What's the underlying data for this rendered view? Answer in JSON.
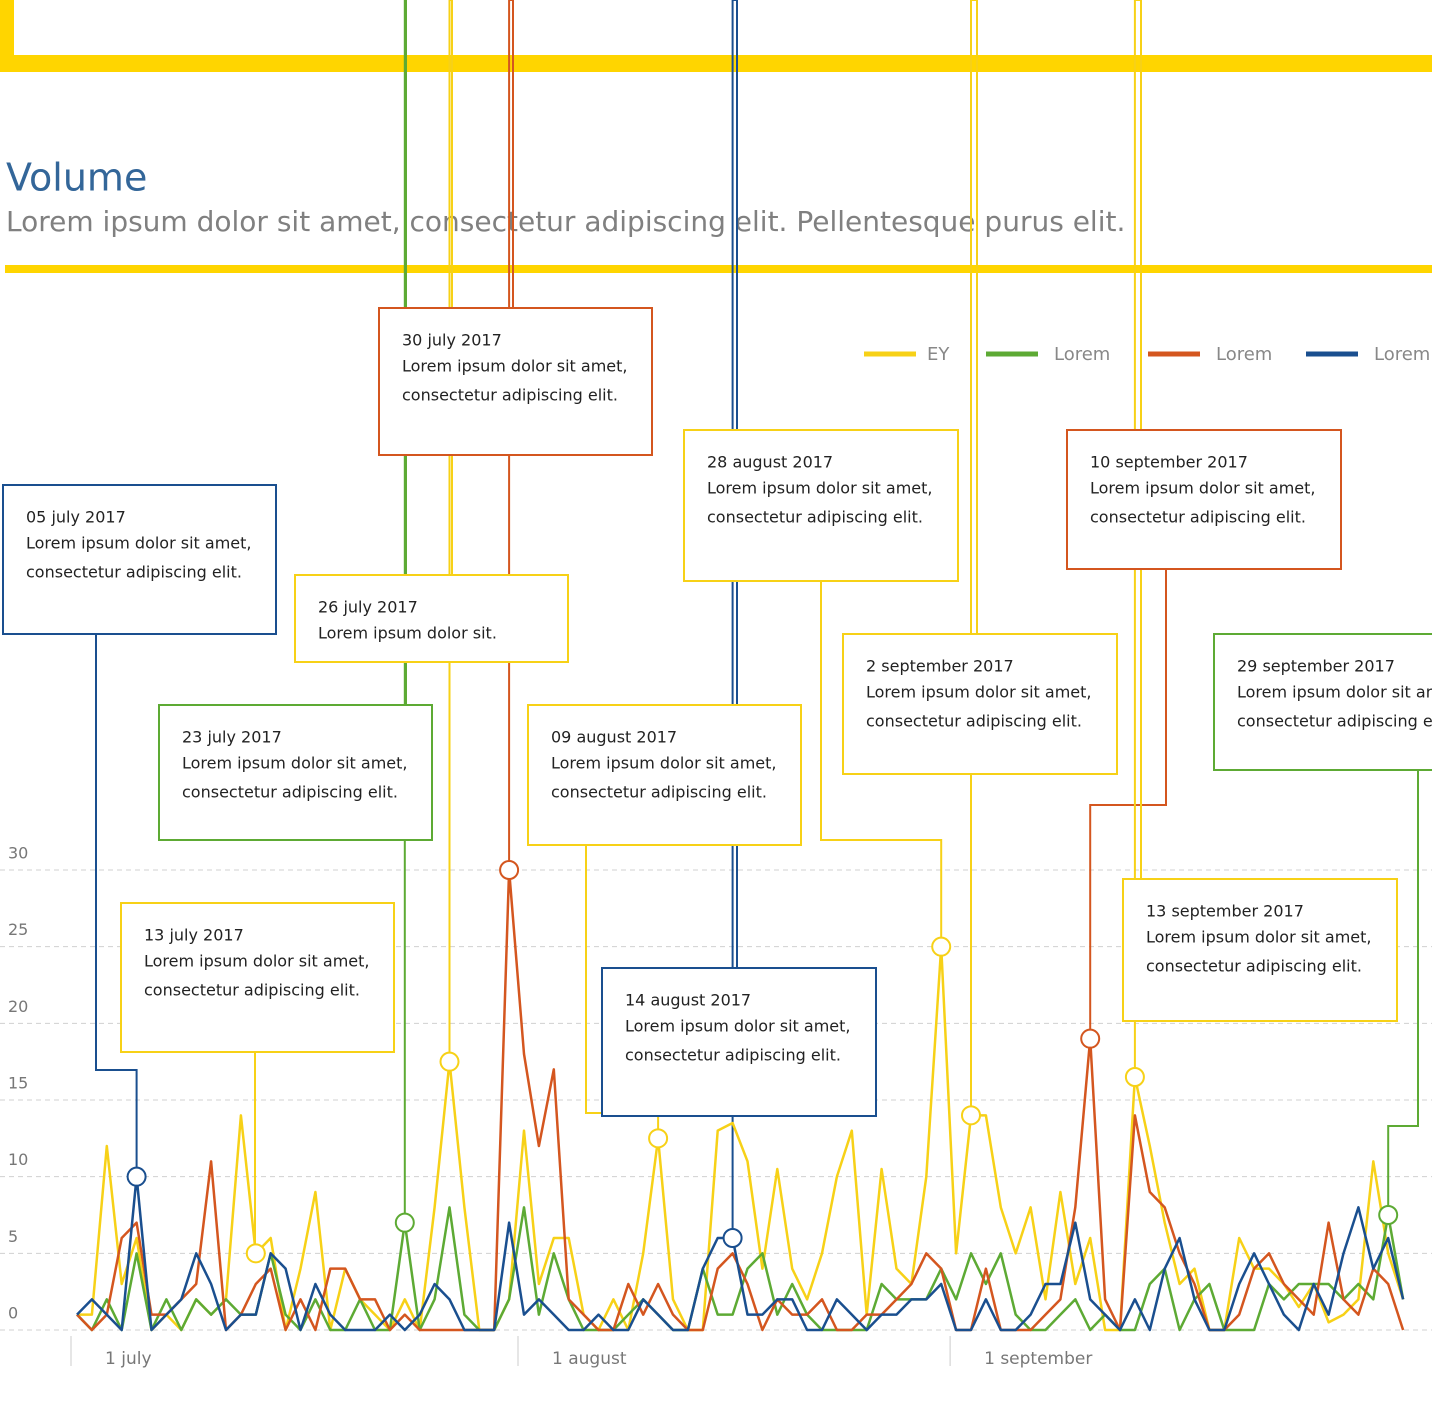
{
  "chart_data": {
    "type": "line",
    "title": "Volume",
    "subtitle": "Lorem ipsum dolor sit amet, consectetur adipiscing elit. Pellentesque purus elit.",
    "categories": [
      "1 july",
      null,
      null,
      null,
      null,
      null,
      null,
      null,
      null,
      null,
      null,
      null,
      null,
      null,
      null,
      null,
      null,
      null,
      null,
      null,
      null,
      null,
      null,
      null,
      null,
      null,
      null,
      null,
      null,
      null,
      "1 august",
      null,
      null,
      null,
      null,
      null,
      null,
      null,
      null,
      null,
      null,
      null,
      null,
      null,
      null,
      null,
      null,
      null,
      null,
      null,
      null,
      null,
      null,
      null,
      null,
      null,
      null,
      null,
      null,
      "1 september",
      null,
      null,
      null,
      null,
      null,
      null,
      null,
      null,
      null,
      null,
      null,
      null,
      null,
      null,
      null,
      null,
      null,
      null,
      null,
      null,
      null,
      null,
      null,
      null,
      null,
      null,
      null,
      null,
      null,
      null
    ],
    "series": [
      {
        "name": "EY",
        "color": "#f7d117",
        "values": [
          1,
          1,
          12,
          3,
          6,
          0,
          1,
          0,
          2,
          1,
          2,
          14,
          5,
          6,
          0,
          4,
          9,
          0,
          4,
          2,
          1,
          0,
          2,
          0,
          8,
          17.5,
          8,
          0,
          0,
          2,
          13,
          3,
          6,
          6,
          1,
          0,
          2,
          0,
          5,
          12.5,
          2,
          0,
          0,
          13,
          13.5,
          11,
          4,
          10.5,
          4,
          2,
          5,
          10,
          13,
          1,
          10.5,
          4,
          3,
          10,
          25,
          5,
          14,
          14,
          8,
          5,
          8,
          2,
          9,
          3,
          6,
          0,
          0,
          16.5,
          12,
          7,
          3,
          4,
          0,
          0,
          6,
          4,
          4,
          3,
          1.5,
          3,
          0.5,
          1,
          2,
          11,
          5,
          2
        ]
      },
      {
        "name": "Lorem",
        "color": "#5daa34",
        "values": [
          1,
          0,
          2,
          0,
          5,
          0,
          2,
          0,
          2,
          1,
          2,
          1,
          1,
          5,
          1,
          0,
          2,
          0,
          0,
          2,
          0,
          0,
          7,
          0,
          2,
          8,
          1,
          0,
          0,
          2,
          8,
          1,
          5,
          2,
          0,
          0,
          0,
          1,
          2,
          1,
          0,
          0,
          4,
          1,
          1,
          4,
          5,
          1,
          3,
          1,
          0,
          0,
          0,
          0,
          3,
          2,
          2,
          2,
          4,
          2,
          5,
          3,
          5,
          1,
          0,
          0,
          1,
          2,
          0,
          1,
          0,
          0,
          3,
          4,
          0,
          2,
          3,
          0,
          0,
          0,
          3,
          2,
          3,
          3,
          3,
          2,
          3,
          2,
          7.5,
          2
        ]
      },
      {
        "name": "Lorem",
        "color": "#d4561f",
        "values": [
          1,
          0,
          1,
          6,
          7,
          1,
          1,
          2,
          3,
          11,
          0,
          1,
          3,
          4,
          0,
          2,
          0,
          4,
          4,
          2,
          2,
          0,
          1,
          0,
          0,
          0,
          0,
          0,
          0,
          30,
          18,
          12,
          17,
          2,
          1,
          0,
          0,
          3,
          1,
          3,
          1,
          0,
          0,
          4,
          5,
          3,
          0,
          2,
          1,
          1,
          2,
          0,
          0,
          1,
          1,
          2,
          3,
          5,
          4,
          0,
          0,
          4,
          0,
          0,
          0,
          1,
          2,
          8,
          19,
          2,
          0,
          14,
          9,
          8,
          5,
          3,
          0,
          0,
          1,
          4,
          5,
          3,
          2,
          1,
          7,
          2,
          1,
          4,
          3,
          0
        ]
      },
      {
        "name": "Lorem",
        "color": "#1a4f8f",
        "values": [
          1,
          2,
          1,
          0,
          10,
          0,
          1,
          2,
          5,
          3,
          0,
          1,
          1,
          5,
          4,
          0,
          3,
          1,
          0,
          0,
          0,
          1,
          0,
          1,
          3,
          2,
          0,
          0,
          0,
          7,
          1,
          2,
          1,
          0,
          0,
          1,
          0,
          0,
          2,
          1,
          0,
          0,
          4,
          6,
          6,
          1,
          1,
          2,
          2,
          0,
          0,
          2,
          1,
          0,
          1,
          1,
          2,
          2,
          3,
          0,
          0,
          2,
          0,
          0,
          1,
          3,
          3,
          7,
          2,
          1,
          0,
          2,
          0,
          4,
          6,
          2,
          0,
          0,
          3,
          5,
          3,
          1,
          0,
          3,
          1,
          5,
          8,
          4,
          6,
          2
        ]
      }
    ],
    "ylim": [
      0,
      30
    ],
    "yticks": [
      0,
      5,
      10,
      15,
      20,
      25,
      30
    ],
    "grid": true,
    "legend": "top-right",
    "annotations": [
      {
        "date": "05 july 2017",
        "text": [
          "Lorem ipsum dolor sit amet,",
          "consectetur adipiscing elit."
        ]
      },
      {
        "date": "13 july 2017",
        "text": [
          "Lorem ipsum dolor sit amet,",
          "consectetur adipiscing elit."
        ]
      },
      {
        "date": "23 july 2017",
        "text": [
          "Lorem ipsum dolor sit amet,",
          "consectetur adipiscing elit."
        ]
      },
      {
        "date": "26 july 2017",
        "text": [
          "Lorem ipsum dolor sit."
        ]
      },
      {
        "date": "30 july 2017",
        "text": [
          "Lorem ipsum dolor sit amet,",
          "consectetur adipiscing elit."
        ]
      },
      {
        "date": "09 august 2017",
        "text": [
          "Lorem ipsum dolor sit amet,",
          "consectetur adipiscing elit."
        ]
      },
      {
        "date": "14 august 2017",
        "text": [
          "Lorem ipsum dolor sit amet,",
          "consectetur adipiscing elit."
        ]
      },
      {
        "date": "28 august 2017",
        "text": [
          "Lorem ipsum dolor sit amet,",
          "consectetur adipiscing elit."
        ]
      },
      {
        "date": "2 september 2017",
        "text": [
          "Lorem ipsum dolor sit amet,",
          "consectetur adipiscing elit."
        ]
      },
      {
        "date": "10 september 2017",
        "text": [
          "Lorem ipsum dolor sit amet,",
          "consectetur adipiscing elit."
        ]
      },
      {
        "date": "13 september 2017",
        "text": [
          "Lorem ipsum dolor sit amet,",
          "consectetur adipiscing elit."
        ]
      },
      {
        "date": "29 september 2017",
        "text": [
          "Lorem ipsum dolor sit amet,",
          "consectetur adipiscing elit."
        ]
      }
    ]
  }
}
